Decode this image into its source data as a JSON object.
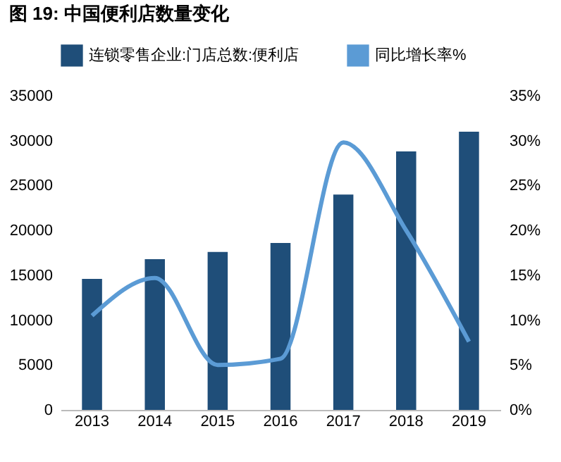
{
  "chart_data": {
    "type": "bar",
    "title": "图 19: 中国便利店数量变化",
    "categories": [
      "2013",
      "2014",
      "2015",
      "2016",
      "2017",
      "2018",
      "2019"
    ],
    "series": [
      {
        "name": "连锁零售企业:门店总数:便利店",
        "color": "#1f4e79",
        "values": [
          14600,
          16800,
          17600,
          18600,
          24000,
          28800,
          31000
        ]
      },
      {
        "name": "同比增长率%",
        "type": "line",
        "axis": "y2",
        "color": "#5b9bd5",
        "values": [
          10.5,
          14.7,
          5.0,
          5.7,
          29.8,
          20.0,
          7.6
        ]
      }
    ],
    "ylim": [
      0,
      35000
    ],
    "yticks": [
      0,
      5000,
      10000,
      15000,
      20000,
      25000,
      30000,
      35000
    ],
    "y2lim": [
      0,
      35
    ],
    "y2ticks": [
      {
        "value": 0,
        "label": "0%"
      },
      {
        "value": 5,
        "label": "5%"
      },
      {
        "value": 10,
        "label": "10%"
      },
      {
        "value": 15,
        "label": "15%"
      },
      {
        "value": 20,
        "label": "20%"
      },
      {
        "value": 25,
        "label": "25%"
      },
      {
        "value": 30,
        "label": "30%"
      },
      {
        "value": 35,
        "label": "35%"
      }
    ],
    "grid": false,
    "legend": "top",
    "marker": "none"
  }
}
